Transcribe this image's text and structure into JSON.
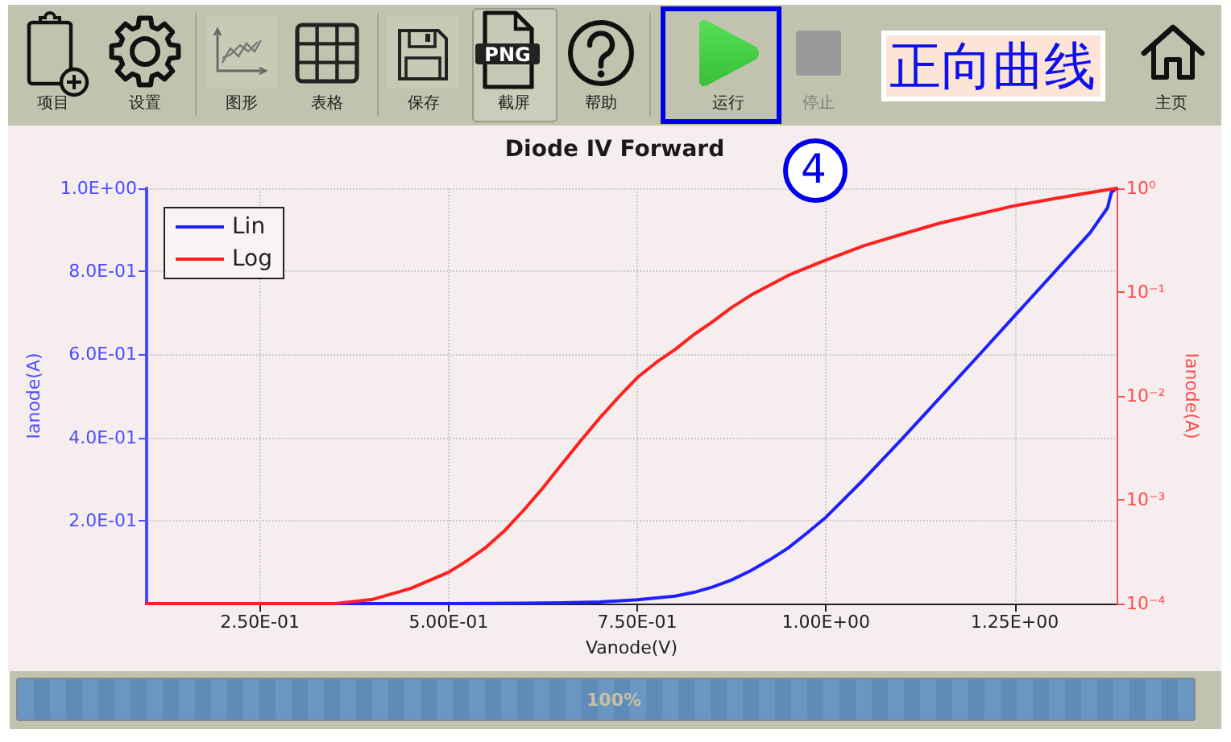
{
  "chart_data": {
    "type": "line",
    "title": "Diode IV Forward",
    "xlabel": "Vanode(V)",
    "ylabel": "Ianode(A)",
    "y2label": "Ianode(A)",
    "series": [
      {
        "name": "Lin",
        "color": "#2020ff",
        "x": [
          0.1,
          0.2,
          0.3,
          0.4,
          0.5,
          0.6,
          0.65,
          0.7,
          0.75,
          0.8,
          0.825,
          0.85,
          0.875,
          0.9,
          0.925,
          0.95,
          0.975,
          1.0,
          1.05,
          1.1,
          1.15,
          1.2,
          1.25,
          1.3,
          1.35,
          1.373,
          1.378,
          1.385
        ],
        "values": [
          0,
          0,
          0,
          0,
          0,
          0.001,
          0.002,
          0.004,
          0.009,
          0.018,
          0.027,
          0.04,
          0.057,
          0.079,
          0.105,
          0.134,
          0.17,
          0.208,
          0.299,
          0.395,
          0.494,
          0.593,
          0.693,
          0.793,
          0.893,
          0.953,
          0.99,
          1.0
        ]
      },
      {
        "name": "Log",
        "color": "#ff2020",
        "axis": "y2",
        "x": [
          0.1,
          0.15,
          0.2,
          0.25,
          0.3,
          0.35,
          0.4,
          0.45,
          0.5,
          0.525,
          0.55,
          0.575,
          0.6,
          0.625,
          0.65,
          0.675,
          0.7,
          0.725,
          0.75,
          0.775,
          0.8,
          0.825,
          0.85,
          0.875,
          0.9,
          0.95,
          1.0,
          1.05,
          1.1,
          1.15,
          1.2,
          1.25,
          1.3,
          1.35,
          1.385
        ],
        "values": [
          0.0001,
          0.0001,
          0.0001,
          0.0001,
          0.0001,
          0.0001,
          0.00011,
          0.00014,
          0.0002,
          0.00026,
          0.00035,
          0.00051,
          0.0008,
          0.0013,
          0.0022,
          0.0037,
          0.0061,
          0.0097,
          0.015,
          0.021,
          0.028,
          0.039,
          0.052,
          0.071,
          0.093,
          0.145,
          0.204,
          0.28,
          0.36,
          0.46,
          0.56,
          0.68,
          0.79,
          0.91,
          1.0
        ]
      }
    ],
    "xlim": [
      0.1,
      1.385
    ],
    "xticks": [
      {
        "value": 0.25,
        "label": "2.50E-01"
      },
      {
        "value": 0.5,
        "label": "5.00E-01"
      },
      {
        "value": 0.75,
        "label": "7.50E-01"
      },
      {
        "value": 1,
        "label": "1.00E+00"
      },
      {
        "value": 1.25,
        "label": "1.25E+00"
      }
    ],
    "ylim": [
      0,
      1
    ],
    "yticks": [
      {
        "value": 0.2,
        "label": "2.0E-01"
      },
      {
        "value": 0.4,
        "label": "4.0E-01"
      },
      {
        "value": 0.6,
        "label": "6.0E-01"
      },
      {
        "value": 0.8,
        "label": "8.0E-01"
      },
      {
        "value": 1,
        "label": "1.0E+00"
      }
    ],
    "y2lim": [
      0.0001,
      1
    ],
    "y2ticks": [
      {
        "value": 0.0001,
        "label": "10⁻⁴"
      },
      {
        "value": 0.001,
        "label": "10⁻³"
      },
      {
        "value": 0.01,
        "label": "10⁻²"
      },
      {
        "value": 0.1,
        "label": "10⁻¹"
      },
      {
        "value": 1,
        "label": "10⁰"
      }
    ],
    "log": "y2",
    "grid": true,
    "legend": "top left",
    "marker": "none",
    "annotations": [
      "项目",
      "设置",
      "图形",
      "表格",
      "保存",
      "截屏",
      "帮助",
      "运行",
      "停止",
      "主页",
      "PNG",
      "正向曲线",
      "4",
      "100%"
    ]
  }
}
